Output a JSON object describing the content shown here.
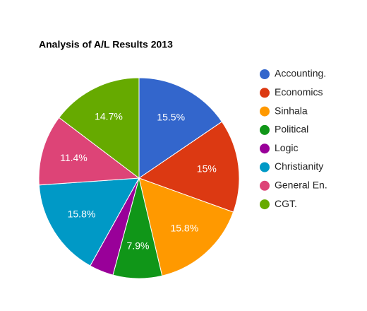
{
  "chart_data": {
    "type": "pie",
    "title": "Analysis of A/L Results 2013",
    "categories": [
      "Accounting.",
      "Economics",
      "Sinhala",
      "Political",
      "Logic",
      "Christianity",
      "General En.",
      "CGT."
    ],
    "values": [
      15.5,
      15,
      15.8,
      7.9,
      3.9,
      15.8,
      11.4,
      14.7
    ],
    "value_labels": [
      "15.5%",
      "15%",
      "15.8%",
      "7.9%",
      null,
      "15.8%",
      "11.4%",
      "14.7%"
    ],
    "colors": [
      "#3366cc",
      "#dc3912",
      "#ff9900",
      "#109618",
      "#990099",
      "#0099c6",
      "#dd4477",
      "#66aa00"
    ],
    "legend": "right"
  }
}
